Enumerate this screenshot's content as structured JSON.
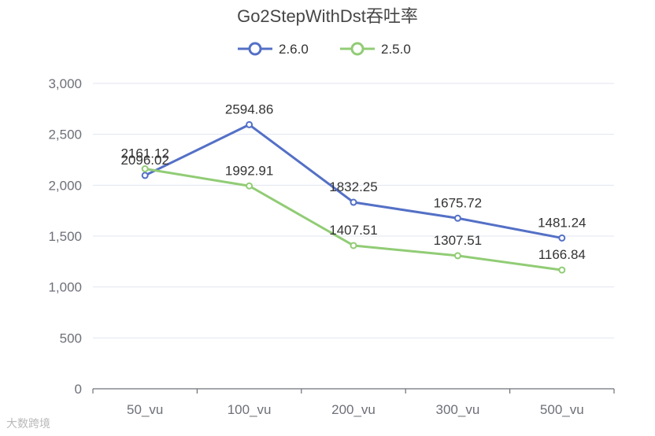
{
  "chart_data": {
    "type": "line",
    "title": "Go2StepWithDst吞吐率",
    "categories": [
      "50_vu",
      "100_vu",
      "200_vu",
      "300_vu",
      "500_vu"
    ],
    "ylim": [
      0,
      3000
    ],
    "yticks": [
      0,
      500,
      1000,
      1500,
      2000,
      2500,
      3000
    ],
    "ytick_labels": [
      "0",
      "500",
      "1,000",
      "1,500",
      "2,000",
      "2,500",
      "3,000"
    ],
    "grid": true,
    "legend": "top-center",
    "series": [
      {
        "name": "2.6.0",
        "color": "#5470c6",
        "values": [
          2096.02,
          2594.86,
          1832.25,
          1675.72,
          1481.24
        ],
        "labels": [
          "2096.02",
          "2594.86",
          "1832.25",
          "1675.72",
          "1481.24"
        ]
      },
      {
        "name": "2.5.0",
        "color": "#91cc75",
        "values": [
          2161.12,
          1992.91,
          1407.51,
          1307.51,
          1166.84
        ],
        "labels": [
          "2161.12",
          "1992.91",
          "1407.51",
          "1307.51",
          "1166.84"
        ]
      }
    ]
  },
  "watermark": "大数跨境"
}
